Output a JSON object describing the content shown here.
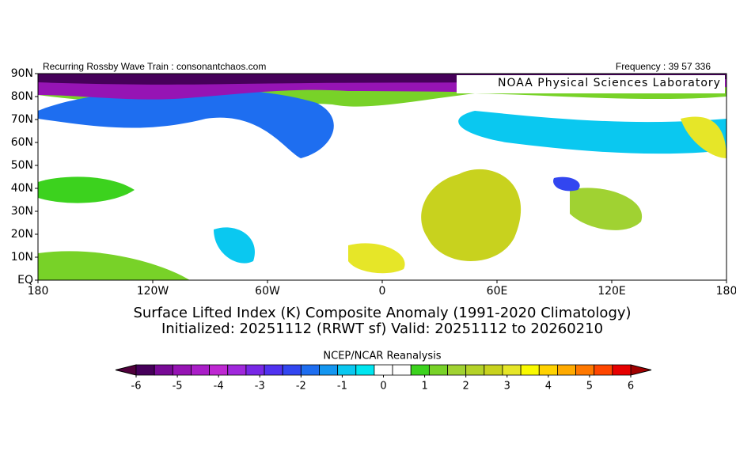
{
  "header": {
    "left": "Recurring Rossby Wave Train : consonantchaos.com",
    "right": "Frequency : 39 57 336"
  },
  "map": {
    "label": "NOAA Physical Sciences Laboratory",
    "lonlim": [
      -180,
      180
    ],
    "latlim": [
      0,
      90
    ],
    "lonticks": [
      {
        "value": -180,
        "label": "180"
      },
      {
        "value": -120,
        "label": "120W"
      },
      {
        "value": -60,
        "label": "60W"
      },
      {
        "value": 0,
        "label": "0"
      },
      {
        "value": 60,
        "label": "60E"
      },
      {
        "value": 120,
        "label": "120E"
      },
      {
        "value": 180,
        "label": "180"
      }
    ],
    "latticks": [
      {
        "value": 90,
        "label": "90N"
      },
      {
        "value": 80,
        "label": "80N"
      },
      {
        "value": 70,
        "label": "70N"
      },
      {
        "value": 60,
        "label": "60N"
      },
      {
        "value": 50,
        "label": "50N"
      },
      {
        "value": 40,
        "label": "40N"
      },
      {
        "value": 30,
        "label": "30N"
      },
      {
        "value": 20,
        "label": "20N"
      },
      {
        "value": 10,
        "label": "10N"
      },
      {
        "value": 0,
        "label": "EQ"
      }
    ]
  },
  "title": [
    "Surface Lifted Index (K) Composite Anomaly (1991-2020 Climatology)",
    "Initialized: 20251112 (RRWT sf) Valid: 20251112 to 20260210"
  ],
  "colorbar": {
    "title": "NCEP/NCAR Reanalysis",
    "lim": [
      -6,
      6
    ],
    "ticks": [
      -6,
      -5,
      -4,
      -3,
      -2,
      -1,
      0,
      1,
      2,
      3,
      4,
      5,
      6
    ],
    "colors": [
      "#46005a",
      "#780a96",
      "#9614b4",
      "#aa1ec8",
      "#be28d2",
      "#a028dc",
      "#7828e6",
      "#5032f0",
      "#3246f0",
      "#1e6ef0",
      "#1496f0",
      "#0ac8f0",
      "#00e6f0",
      "#ffffff",
      "#ffffff",
      "#3cd21e",
      "#78d228",
      "#a0d232",
      "#b4d228",
      "#c8d21e",
      "#e6e628",
      "#fafa00",
      "#ffd200",
      "#ffaa00",
      "#ff7800",
      "#ff4600",
      "#e60000"
    ],
    "under": "#50003c",
    "over": "#a00000"
  }
}
